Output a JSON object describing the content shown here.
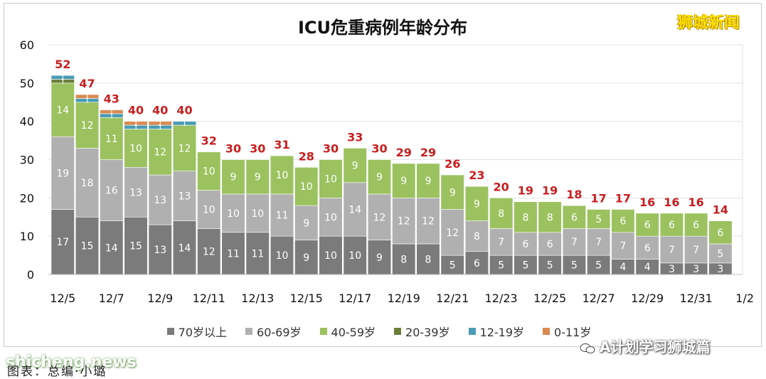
{
  "chart_data": {
    "type": "bar",
    "stacked": true,
    "title": "ICU危重病例年龄分布",
    "ylim": [
      0,
      60
    ],
    "yticks": [
      0,
      10,
      20,
      30,
      40,
      50,
      60
    ],
    "grid": true,
    "legend_position": "bottom",
    "categories": [
      "12/5",
      "12/6",
      "12/7",
      "12/8",
      "12/9",
      "12/10",
      "12/11",
      "12/12",
      "12/13",
      "12/14",
      "12/15",
      "12/16",
      "12/17",
      "12/18",
      "12/19",
      "12/20",
      "12/21",
      "12/22",
      "12/23",
      "12/24",
      "12/25",
      "12/26",
      "12/27",
      "12/28",
      "12/29",
      "12/30",
      "12/31",
      "1/1",
      "1/2"
    ],
    "xtick_labels": [
      "12/5",
      "12/7",
      "12/9",
      "12/11",
      "12/13",
      "12/15",
      "12/17",
      "12/19",
      "12/21",
      "12/23",
      "12/25",
      "12/27",
      "12/29",
      "12/31",
      "1/2"
    ],
    "series": [
      {
        "name": "70岁以上",
        "color": "#7b7b7b",
        "values": [
          17,
          15,
          14,
          15,
          13,
          14,
          12,
          11,
          11,
          10,
          9,
          10,
          10,
          9,
          8,
          8,
          5,
          6,
          5,
          5,
          5,
          5,
          5,
          4,
          4,
          3,
          3,
          3,
          null
        ]
      },
      {
        "name": "60-69岁",
        "color": "#b0b0b0",
        "values": [
          19,
          18,
          16,
          13,
          13,
          13,
          10,
          10,
          10,
          11,
          9,
          10,
          14,
          12,
          12,
          12,
          12,
          8,
          7,
          6,
          6,
          7,
          7,
          7,
          6,
          7,
          7,
          5,
          null
        ]
      },
      {
        "name": "40-59岁",
        "color": "#9bc25e",
        "values": [
          14,
          12,
          11,
          10,
          12,
          12,
          10,
          9,
          9,
          10,
          10,
          10,
          9,
          9,
          9,
          9,
          9,
          9,
          8,
          8,
          8,
          6,
          5,
          6,
          6,
          6,
          6,
          6,
          null
        ]
      },
      {
        "name": "20-39岁",
        "color": "#6b7f3a",
        "values": [
          1,
          0,
          0,
          0,
          0,
          0,
          0,
          0,
          0,
          0,
          0,
          0,
          0,
          0,
          0,
          0,
          0,
          0,
          0,
          0,
          0,
          0,
          0,
          0,
          0,
          0,
          0,
          0,
          null
        ]
      },
      {
        "name": "12-19岁",
        "color": "#4a9bb5",
        "values": [
          1,
          1,
          1,
          1,
          1,
          1,
          0,
          0,
          0,
          0,
          0,
          0,
          0,
          0,
          0,
          0,
          0,
          0,
          0,
          0,
          0,
          0,
          0,
          0,
          0,
          0,
          0,
          0,
          null
        ]
      },
      {
        "name": "0-11岁",
        "color": "#d98b52",
        "values": [
          0,
          1,
          1,
          1,
          1,
          0,
          0,
          0,
          0,
          0,
          0,
          0,
          0,
          0,
          0,
          0,
          0,
          0,
          0,
          0,
          0,
          0,
          0,
          0,
          0,
          0,
          0,
          0,
          null
        ]
      }
    ],
    "totals": [
      52,
      47,
      43,
      40,
      40,
      40,
      32,
      30,
      30,
      31,
      28,
      30,
      33,
      30,
      29,
      29,
      26,
      23,
      20,
      19,
      19,
      18,
      17,
      17,
      16,
      16,
      16,
      14,
      null
    ],
    "segment_labels": [
      [
        "17",
        "19",
        "14",
        "1",
        "1",
        ""
      ],
      [
        "15",
        "18",
        "12",
        "",
        "1",
        "1"
      ],
      [
        "14",
        "16",
        "11",
        "",
        "1",
        "1"
      ],
      [
        "15",
        "13",
        "10",
        "",
        "1",
        "1"
      ],
      [
        "13",
        "13",
        "12",
        "",
        "1",
        "1"
      ],
      [
        "14",
        "13",
        "12",
        "",
        "1",
        ""
      ],
      [
        "12",
        "10",
        "10",
        "",
        "",
        ""
      ],
      [
        "11",
        "10",
        "9",
        "",
        "",
        ""
      ],
      [
        "11",
        "10",
        "9",
        "",
        "",
        ""
      ],
      [
        "10",
        "11",
        "10",
        "",
        "",
        ""
      ],
      [
        "9",
        "9",
        "10",
        "",
        "",
        ""
      ],
      [
        "10",
        "10",
        "10",
        "",
        "",
        ""
      ],
      [
        "10",
        "14",
        "9",
        "",
        "",
        ""
      ],
      [
        "9",
        "12",
        "9",
        "",
        "",
        ""
      ],
      [
        "8",
        "12",
        "9",
        "",
        "",
        ""
      ],
      [
        "8",
        "12",
        "9",
        "",
        "",
        ""
      ],
      [
        "5",
        "12",
        "9",
        "",
        "",
        ""
      ],
      [
        "6",
        "8",
        "9",
        "",
        "",
        ""
      ],
      [
        "5",
        "7",
        "8",
        "",
        "",
        ""
      ],
      [
        "5",
        "6",
        "8",
        "",
        "",
        ""
      ],
      [
        "5",
        "6",
        "8",
        "",
        "",
        ""
      ],
      [
        "5",
        "7",
        "6",
        "",
        "",
        ""
      ],
      [
        "5",
        "7",
        "5",
        "",
        "",
        ""
      ],
      [
        "4",
        "7",
        "6",
        "",
        "",
        ""
      ],
      [
        "4",
        "6",
        "6",
        "",
        "",
        ""
      ],
      [
        "3",
        "7",
        "6",
        "",
        "",
        ""
      ],
      [
        "3",
        "7",
        "6",
        "",
        "",
        ""
      ],
      [
        "3",
        "5",
        "6",
        "",
        "",
        ""
      ],
      [
        "",
        "",
        "",
        "",
        "",
        ""
      ]
    ],
    "total_label_color": "#c81e1e"
  },
  "brand": "狮城新闻",
  "watermark_left": "shicheng.news",
  "watermark_right": "A计划学习狮城篇",
  "caption": "图表：总编·小璐"
}
